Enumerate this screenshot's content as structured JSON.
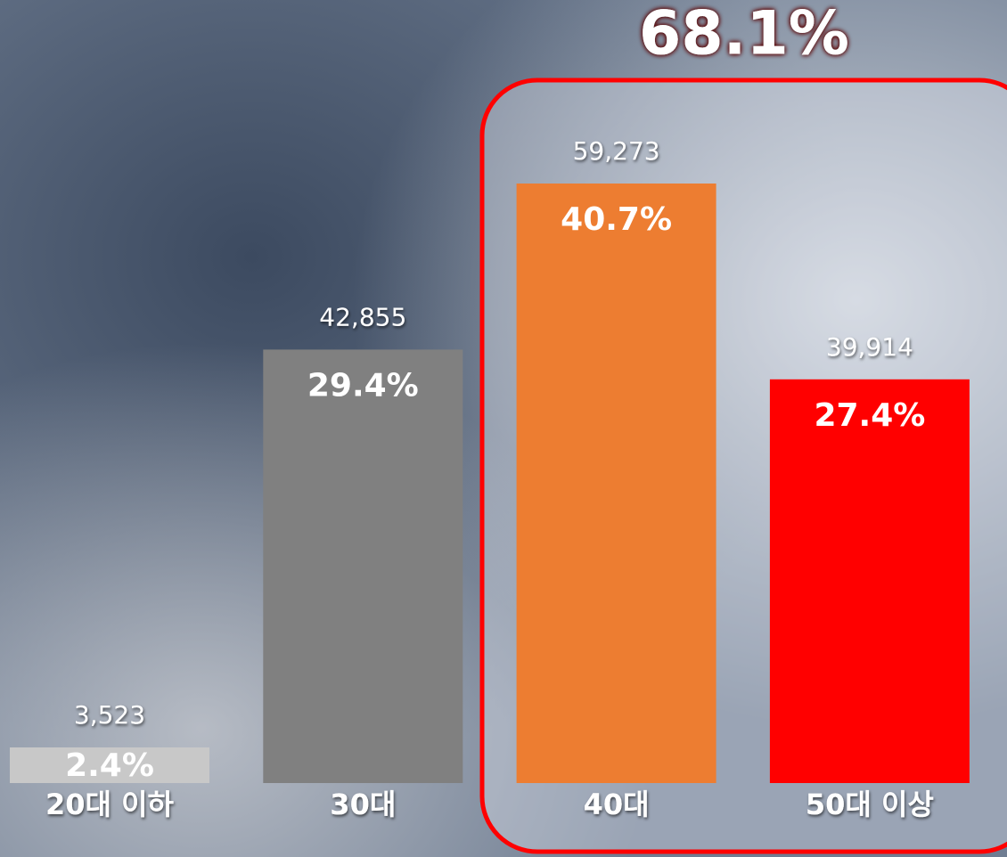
{
  "chart_data": {
    "type": "bar",
    "categories": [
      "20대 이하",
      "30대",
      "40대",
      "50대 이상"
    ],
    "values": [
      3523,
      42855,
      59273,
      39914
    ],
    "value_labels": [
      "3,523",
      "42,855",
      "59,273",
      "39,914"
    ],
    "shares": [
      2.4,
      29.4,
      40.7,
      27.4
    ],
    "share_labels": [
      "2.4%",
      "29.4%",
      "40.7%",
      "27.4%"
    ],
    "colors": [
      "#c8c8c8",
      "#808080",
      "#ed7d31",
      "#ff0000"
    ],
    "annotation": {
      "value": 68.1,
      "label": "68.1%"
    }
  }
}
